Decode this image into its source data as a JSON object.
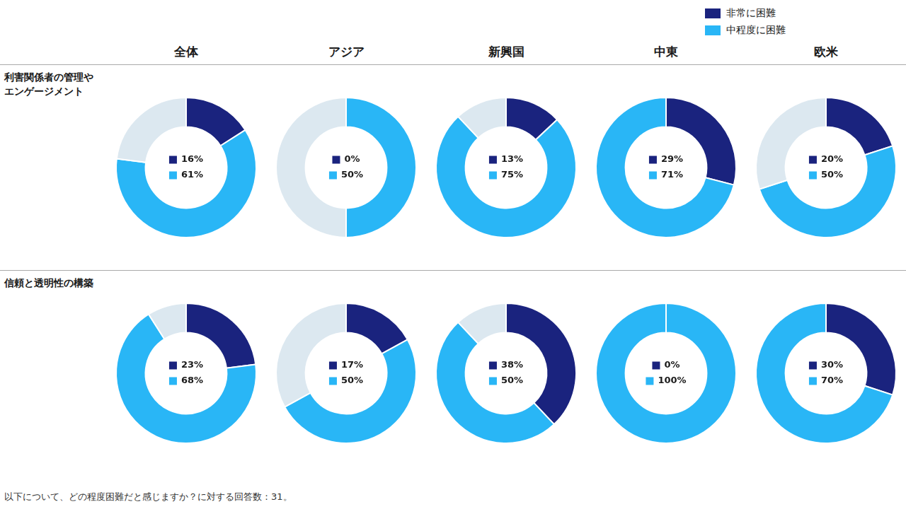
{
  "chart_data": [
    {
      "type": "doughnut",
      "categories": [
        "非常に困難",
        "中程度に困難",
        null
      ],
      "values": [
        16,
        61,
        23
      ],
      "colors": [
        "#1a237e",
        "#29b6f6",
        "#dce8f0"
      ],
      "value_labels": [
        "16%",
        "61%",
        null
      ]
    },
    {
      "type": "doughnut",
      "categories": [
        "非常に困難",
        "中程度に困難",
        null
      ],
      "values": [
        0,
        50,
        50
      ],
      "colors": [
        "#1a237e",
        "#29b6f6",
        "#dce8f0"
      ],
      "value_labels": [
        "0%",
        "50%",
        null
      ]
    },
    {
      "type": "doughnut",
      "categories": [
        "非常に困難",
        "中程度に困難",
        null
      ],
      "values": [
        13,
        75,
        12
      ],
      "colors": [
        "#1a237e",
        "#29b6f6",
        "#dce8f0"
      ],
      "value_labels": [
        "13%",
        "75%",
        null
      ]
    },
    {
      "type": "doughnut",
      "categories": [
        "非常に困難",
        "中程度に困難",
        null
      ],
      "values": [
        29,
        71,
        0
      ],
      "colors": [
        "#1a237e",
        "#29b6f6",
        "#dce8f0"
      ],
      "value_labels": [
        "29%",
        "71%",
        null
      ]
    },
    {
      "type": "doughnut",
      "categories": [
        "非常に困難",
        "中程度に困難",
        null
      ],
      "values": [
        20,
        50,
        30
      ],
      "colors": [
        "#1a237e",
        "#29b6f6",
        "#dce8f0"
      ],
      "value_labels": [
        "20%",
        "50%",
        null
      ]
    },
    {
      "type": "doughnut",
      "categories": [
        "非常に困難",
        "中程度に困難",
        null
      ],
      "values": [
        23,
        68,
        9
      ],
      "colors": [
        "#1a237e",
        "#29b6f6",
        "#dce8f0"
      ],
      "value_labels": [
        "23%",
        "68%",
        null
      ]
    },
    {
      "type": "doughnut",
      "categories": [
        "非常に困難",
        "中程度に困難",
        null
      ],
      "values": [
        17,
        50,
        33
      ],
      "colors": [
        "#1a237e",
        "#29b6f6",
        "#dce8f0"
      ],
      "value_labels": [
        "17%",
        "50%",
        null
      ]
    },
    {
      "type": "doughnut",
      "categories": [
        "非常に困難",
        "中程度に困難",
        null
      ],
      "values": [
        38,
        50,
        12
      ],
      "colors": [
        "#1a237e",
        "#29b6f6",
        "#dce8f0"
      ],
      "value_labels": [
        "38%",
        "50%",
        null
      ]
    },
    {
      "type": "doughnut",
      "categories": [
        "非常に困難",
        "中程度に困難",
        null
      ],
      "values": [
        0,
        100,
        0
      ],
      "colors": [
        "#1a237e",
        "#29b6f6",
        "#dce8f0"
      ],
      "value_labels": [
        "0%",
        "100%",
        null
      ]
    },
    {
      "type": "doughnut",
      "categories": [
        "非常に困難",
        "中程度に困難",
        null
      ],
      "values": [
        30,
        70,
        0
      ],
      "colors": [
        "#1a237e",
        "#29b6f6",
        "#dce8f0"
      ],
      "value_labels": [
        "30%",
        "70%",
        null
      ]
    }
  ],
  "columns": [
    "全体",
    "アジア",
    "新興国",
    "中東",
    "欧米"
  ],
  "rows": [
    "利害関係者の管理や\nエンゲージメント",
    "信頼と透明性の構築"
  ],
  "legend": "upper right",
  "footnote": "以下について、どの程度困難だと感じますか？に対する回答数：31。"
}
